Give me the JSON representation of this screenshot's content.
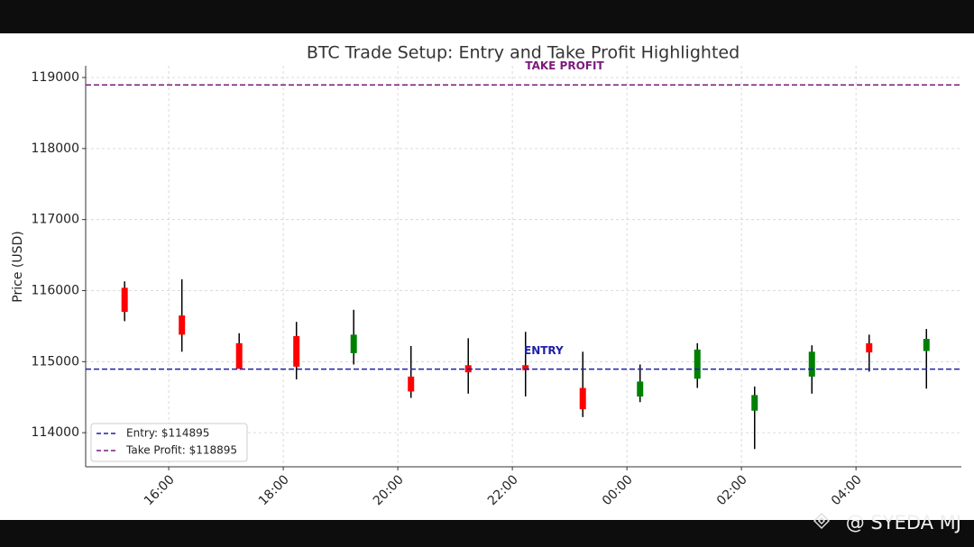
{
  "chart_data": {
    "type": "candlestick",
    "title": "BTC Trade Setup: Entry and Take Profit Highlighted",
    "ylabel": "Price (USD)",
    "x": [
      15.23,
      16.23,
      17.23,
      18.23,
      19.23,
      20.23,
      21.23,
      22.23,
      23.23,
      24.23,
      25.23,
      26.23,
      27.23,
      28.23,
      29.23
    ],
    "open": [
      116040,
      115650,
      115260,
      115360,
      115120,
      114790,
      114950,
      114950,
      114630,
      114510,
      114760,
      114310,
      114790,
      115260,
      115150
    ],
    "high": [
      116130,
      116160,
      115400,
      115560,
      115730,
      115220,
      115330,
      115420,
      115140,
      114960,
      115260,
      114650,
      115230,
      115380,
      115460
    ],
    "low": [
      115570,
      115140,
      114900,
      114750,
      114960,
      114490,
      114550,
      114510,
      114220,
      114430,
      114630,
      113770,
      114550,
      114860,
      114620
    ],
    "close": [
      115700,
      115380,
      114900,
      114930,
      115380,
      114580,
      114850,
      114880,
      114330,
      114720,
      115170,
      114530,
      115140,
      115130,
      115320
    ],
    "up_color": "green",
    "down_color": "red",
    "wick_color": "black",
    "xlim": [
      14.55,
      29.84
    ],
    "ylim": [
      113520,
      119165
    ],
    "xticks": [
      {
        "value": 16,
        "label": "16:00"
      },
      {
        "value": 18,
        "label": "18:00"
      },
      {
        "value": 20,
        "label": "20:00"
      },
      {
        "value": 22,
        "label": "22:00"
      },
      {
        "value": 24,
        "label": "00:00"
      },
      {
        "value": 26,
        "label": "02:00"
      },
      {
        "value": 28,
        "label": "04:00"
      }
    ],
    "yticks": [
      114000,
      115000,
      116000,
      117000,
      118000,
      119000
    ],
    "grid": true,
    "legend": "lower left",
    "levels": [
      {
        "name": "Entry: $114895",
        "value": 114895,
        "color": "#1f1fa8",
        "label": "ENTRY"
      },
      {
        "name": "Take Profit: $118895",
        "value": 118895,
        "color": "#7b1a7b",
        "label": "TAKE PROFIT"
      }
    ]
  },
  "watermark": "@ SYEDA MJ"
}
